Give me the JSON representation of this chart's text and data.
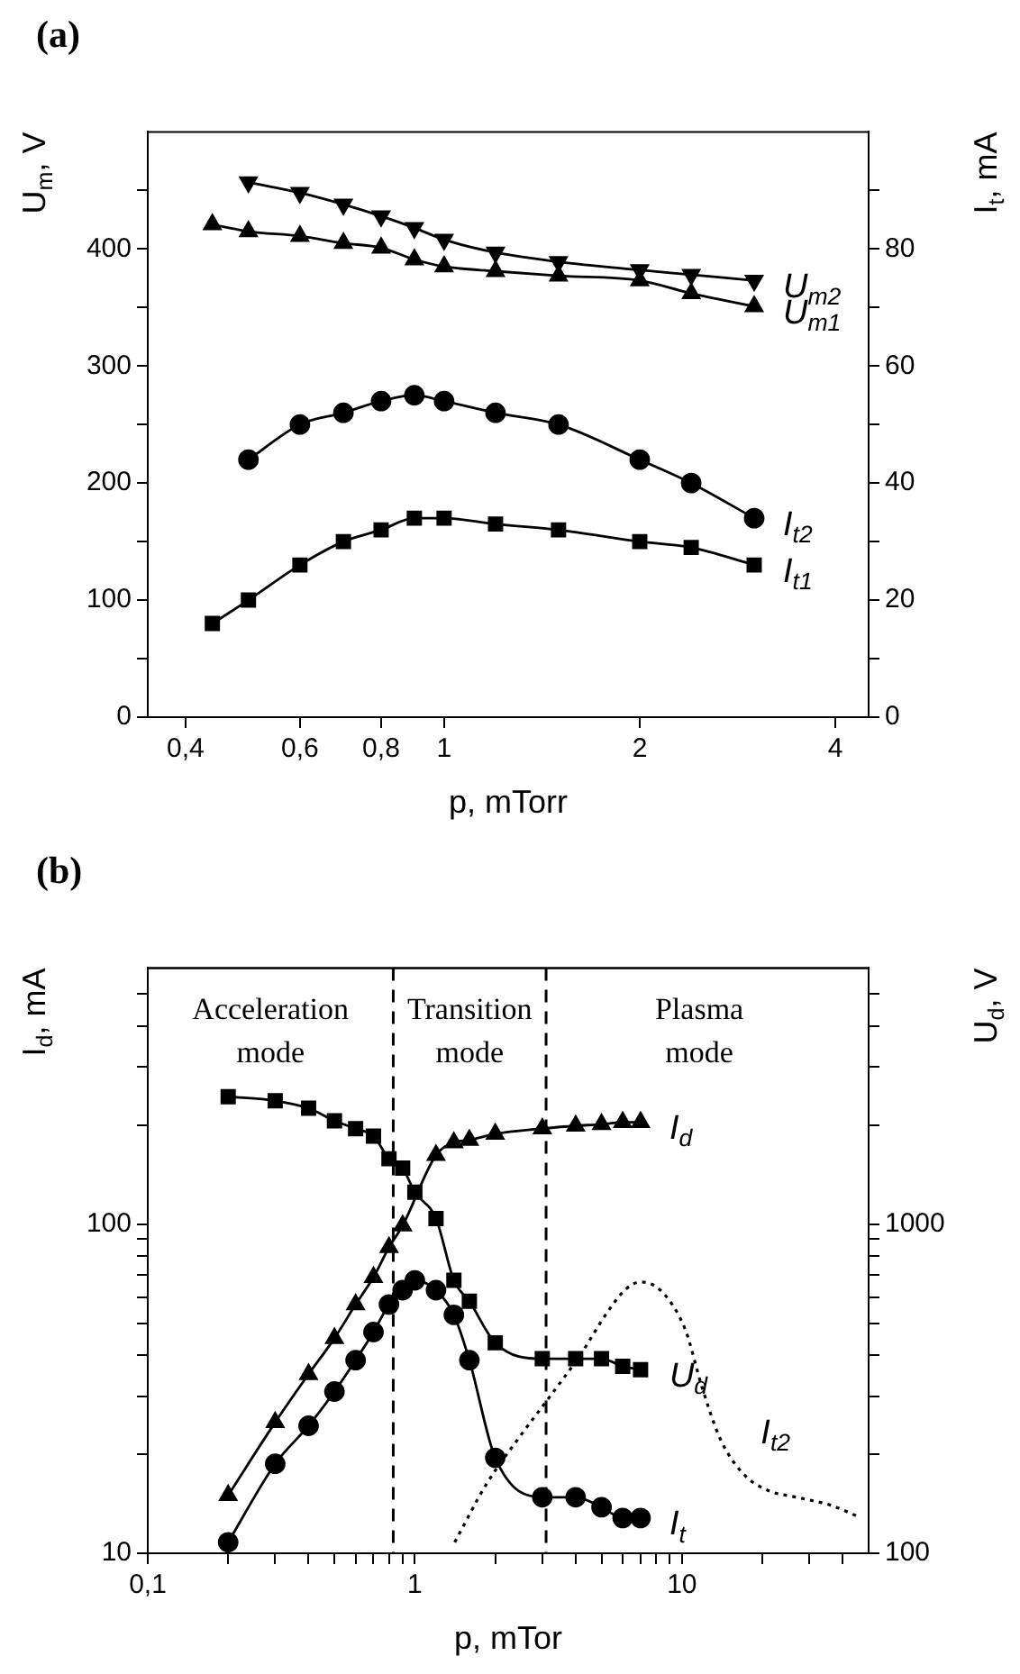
{
  "chart_data": [
    {
      "type": "line",
      "title": "(a)",
      "xlabel": "p, mTorr",
      "ylabel": "U$_{m}$, V",
      "y2label": "I$_{t}$, mA",
      "log": "x",
      "grid": false,
      "legend": false,
      "xlim": [
        0.35,
        4.5
      ],
      "xticks": [
        {
          "value": 0.4,
          "label": "0,4"
        },
        {
          "value": 0.6,
          "label": "0,6"
        },
        {
          "value": 0.8,
          "label": "0,8"
        },
        1,
        2,
        4
      ],
      "ylim": [
        0,
        500
      ],
      "yticks": [
        0,
        {
          "value": 50,
          "label": null
        },
        100,
        {
          "value": 150,
          "label": null
        },
        200,
        {
          "value": 250,
          "label": null
        },
        300,
        {
          "value": 350,
          "label": null
        },
        400,
        {
          "value": 450,
          "label": null
        }
      ],
      "y2lim": [
        0,
        100
      ],
      "y2ticks": [
        0,
        {
          "value": 10,
          "label": null
        },
        20,
        {
          "value": 30,
          "label": null
        },
        40,
        {
          "value": 50,
          "label": null
        },
        60,
        {
          "value": 70,
          "label": null
        },
        80,
        {
          "value": 90,
          "label": null
        }
      ],
      "series": [
        {
          "name": "U$_{m2}$",
          "color": "#000000",
          "marker": "triangle_down",
          "line_style": "solid",
          "x": [
            0.5,
            0.6,
            0.7,
            0.8,
            0.9,
            1,
            1.2,
            1.5,
            2,
            2.4,
            3
          ],
          "values": [
            457,
            448,
            438,
            428,
            418,
            408,
            397,
            389,
            382,
            378,
            373
          ]
        },
        {
          "name": "U$_{m1}$",
          "color": "#000000",
          "marker": "triangle",
          "line_style": "solid",
          "x": [
            0.44,
            0.5,
            0.6,
            0.7,
            0.8,
            0.9,
            1,
            1.2,
            1.5,
            2,
            2.4,
            3
          ],
          "values": [
            421,
            415,
            411,
            405,
            401,
            391,
            385,
            381,
            377,
            373,
            362,
            351
          ]
        },
        {
          "name": "I$_{t2}$",
          "color": "#000000",
          "marker": "circle",
          "line_style": "solid",
          "axis": "y2",
          "x": [
            0.5,
            0.6,
            0.7,
            0.8,
            0.9,
            1,
            1.2,
            1.5,
            2,
            2.4,
            3
          ],
          "values": [
            44,
            50,
            52,
            54,
            55,
            54,
            52,
            50,
            44,
            40,
            34
          ]
        },
        {
          "name": "I$_{t1}$",
          "color": "#000000",
          "marker": "square",
          "line_style": "solid",
          "axis": "y2",
          "x": [
            0.44,
            0.5,
            0.6,
            0.7,
            0.8,
            0.9,
            1,
            1.2,
            1.5,
            2,
            2.4,
            3
          ],
          "values": [
            16,
            20,
            26,
            30,
            32,
            34,
            34,
            33,
            32,
            30,
            29,
            26
          ]
        }
      ]
    },
    {
      "type": "line",
      "title": "(b)",
      "xlabel": "p, mTor",
      "ylabel": "I$_{d}$, mA",
      "log": "xy",
      "grid": false,
      "legend": false,
      "xlim": [
        0.1,
        50
      ],
      "xticks": [
        {
          "value": 0.1,
          "label": "0,1"
        },
        {
          "value": 0.2,
          "label": null
        },
        {
          "value": 0.3,
          "label": null
        },
        {
          "value": 0.4,
          "label": null
        },
        {
          "value": 0.5,
          "label": null
        },
        {
          "value": 0.6,
          "label": null
        },
        {
          "value": 0.7,
          "label": null
        },
        {
          "value": 0.8,
          "label": null
        },
        {
          "value": 0.9,
          "label": null
        },
        1,
        {
          "value": 2,
          "label": null
        },
        {
          "value": 3,
          "label": null
        },
        {
          "value": 4,
          "label": null
        },
        {
          "value": 5,
          "label": null
        },
        {
          "value": 6,
          "label": null
        },
        {
          "value": 7,
          "label": null
        },
        {
          "value": 8,
          "label": null
        },
        {
          "value": 9,
          "label": null
        },
        10,
        {
          "value": 20,
          "label": null
        },
        {
          "value": 30,
          "label": null
        },
        {
          "value": 40,
          "label": null
        }
      ],
      "ylim": [
        10,
        600
      ],
      "yticks": [
        10,
        {
          "value": 20,
          "label": null
        },
        {
          "value": 30,
          "label": null
        },
        {
          "value": 40,
          "label": null
        },
        {
          "value": 50,
          "label": null
        },
        {
          "value": 60,
          "label": null
        },
        {
          "value": 70,
          "label": null
        },
        {
          "value": 80,
          "label": null
        },
        {
          "value": 90,
          "label": null
        },
        100,
        {
          "value": 200,
          "label": null
        },
        {
          "value": 300,
          "label": null
        },
        {
          "value": 400,
          "label": null
        },
        {
          "value": 500,
          "label": null
        }
      ],
      "ref_lines": [
        {
          "axis": "x",
          "value": 0.83,
          "color": "#000000",
          "line_style": "dashed"
        },
        {
          "axis": "x",
          "value": 3.1,
          "color": "#000000",
          "line_style": "dashed"
        }
      ],
      "annotations": [
        "Acceleration mode",
        "Transition mode",
        "Plasma mode"
      ],
      "series": [
        {
          "name": "I$_{d}$",
          "color": "#000000",
          "marker": "triangle",
          "line_style": "solid",
          "x": [
            0.2,
            0.3,
            0.4,
            0.5,
            0.6,
            0.7,
            0.8,
            0.9,
            1,
            1.2,
            1.4,
            1.6,
            2,
            3,
            4,
            5,
            6,
            7
          ],
          "values": [
            15,
            25,
            35,
            45,
            57,
            69,
            85,
            99,
            null,
            162,
            177,
            180,
            188,
            195,
            199,
            201,
            204,
            204
          ]
        },
        {
          "name": "I$_{t}$",
          "color": "#000000",
          "marker": "circle",
          "line_style": "solid",
          "x": [
            0.2,
            0.3,
            0.4,
            0.5,
            0.6,
            0.7,
            0.8,
            0.9,
            1,
            1.2,
            1.4,
            1.6,
            2,
            3,
            4,
            5,
            6,
            7
          ],
          "values": [
            10.8,
            18.7,
            24.4,
            31,
            38.6,
            47,
            57,
            63,
            67.5,
            63,
            53,
            38.6,
            19.5,
            14.8,
            14.8,
            13.8,
            12.8,
            12.8
          ]
        },
        {
          "name": "I$_{t2}$",
          "color": "#000000",
          "marker": "none",
          "line_style": "dotted",
          "x": [
            1.41,
            1.86,
            2.5,
            3.2,
            4.15,
            5.3,
            6.2,
            7,
            8.4,
            10.3,
            11.9,
            13.9,
            16.9,
            20.7,
            28,
            36,
            46
          ],
          "values": [
            10.8,
            16.3,
            22.9,
            29.9,
            39.9,
            54.5,
            63.7,
            66.7,
            62.4,
            47.7,
            31.9,
            22.3,
            17.5,
            15.6,
            14.7,
            14,
            12.9
          ]
        }
      ]
    },
    {
      "type": "line",
      "ylabel": "U$_{d}$, V",
      "log": "xy",
      "grid": false,
      "legend": false,
      "tick_labels": "y",
      "xlim": [
        0.1,
        50
      ],
      "xticks": [
        {
          "value": 0.1,
          "label": null
        },
        {
          "value": 0.2,
          "label": null
        },
        {
          "value": 0.3,
          "label": null
        },
        {
          "value": 0.4,
          "label": null
        },
        {
          "value": 0.5,
          "label": null
        },
        {
          "value": 0.6,
          "label": null
        },
        {
          "value": 0.7,
          "label": null
        },
        {
          "value": 0.8,
          "label": null
        },
        {
          "value": 0.9,
          "label": null
        },
        {
          "value": 1,
          "label": null
        },
        {
          "value": 2,
          "label": null
        },
        {
          "value": 3,
          "label": null
        },
        {
          "value": 4,
          "label": null
        },
        {
          "value": 5,
          "label": null
        },
        {
          "value": 6,
          "label": null
        },
        {
          "value": 7,
          "label": null
        },
        {
          "value": 8,
          "label": null
        },
        {
          "value": 9,
          "label": null
        },
        {
          "value": 10,
          "label": null
        },
        {
          "value": 20,
          "label": null
        },
        {
          "value": 30,
          "label": null
        },
        {
          "value": 40,
          "label": null
        }
      ],
      "ylim": [
        100,
        6000
      ],
      "yticks": [
        100,
        {
          "value": 200,
          "label": null
        },
        {
          "value": 300,
          "label": null
        },
        {
          "value": 400,
          "label": null
        },
        {
          "value": 500,
          "label": null
        },
        {
          "value": 600,
          "label": null
        },
        {
          "value": 700,
          "label": null
        },
        {
          "value": 800,
          "label": null
        },
        {
          "value": 900,
          "label": null
        },
        1000,
        {
          "value": 2000,
          "label": null
        },
        {
          "value": 3000,
          "label": null
        },
        {
          "value": 4000,
          "label": null
        },
        {
          "value": 5000,
          "label": null
        }
      ],
      "series": [
        {
          "name": "U$_{d}$",
          "color": "#000000",
          "marker": "square",
          "line_style": "solid",
          "x": [
            0.2,
            0.3,
            0.4,
            0.5,
            0.6,
            0.7,
            0.8,
            0.9,
            1,
            1.2,
            1.4,
            1.6,
            2,
            3,
            4,
            5,
            6,
            7
          ],
          "values": [
            2440,
            2370,
            2250,
            2060,
            1950,
            1850,
            1580,
            1480,
            1250,
            1040,
            675,
            583,
            436,
            390,
            390,
            390,
            370,
            361
          ]
        }
      ]
    }
  ]
}
